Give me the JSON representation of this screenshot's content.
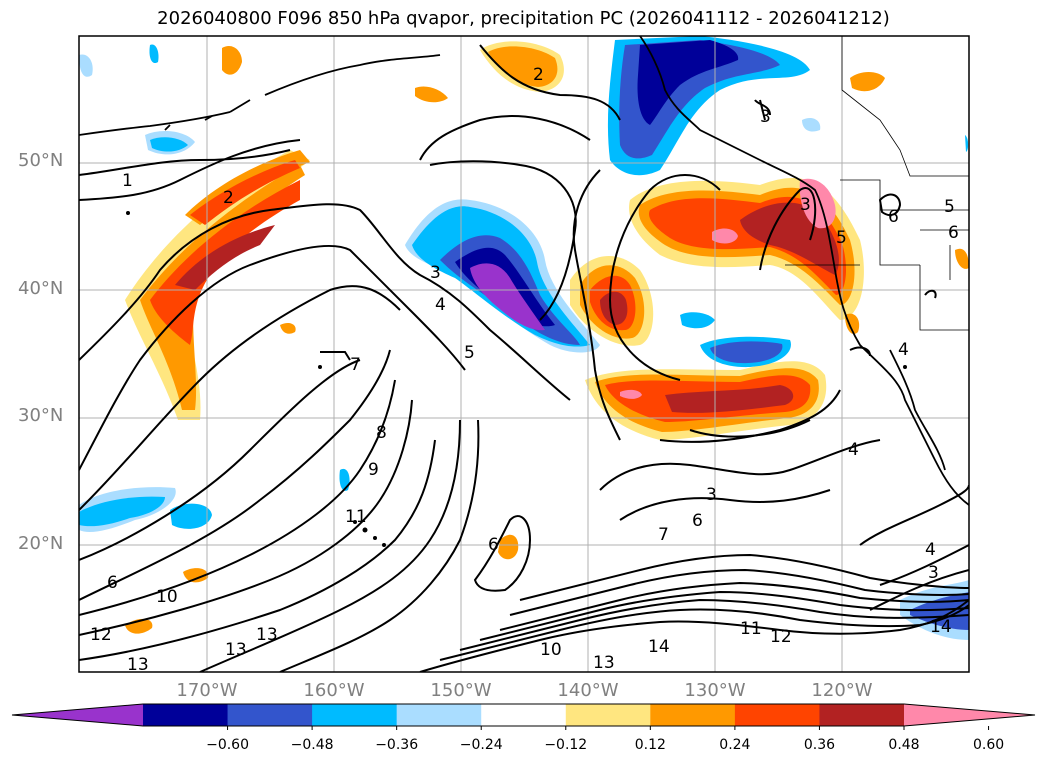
{
  "title": "2026040800 F096 850 hPa qvapor, precipitation PC (2026041112 - 2026041212)",
  "map": {
    "lat_labels": [
      "50°N",
      "40°N",
      "30°N",
      "20°N"
    ],
    "lon_labels": [
      "170°W",
      "160°W",
      "150°W",
      "140°W",
      "130°W",
      "120°W"
    ],
    "contour_labels": [
      "1",
      "2",
      "2",
      "3",
      "3",
      "4",
      "5",
      "6",
      "7",
      "8",
      "9",
      "10",
      "11",
      "12",
      "13",
      "13",
      "13",
      "14",
      "6",
      "6",
      "4",
      "4",
      "3",
      "3",
      "5",
      "6",
      "5",
      "6",
      "7",
      "10",
      "11",
      "12",
      "13",
      "14",
      "4",
      "3"
    ],
    "grid": true
  },
  "colorbar": {
    "ticks": [
      "−0.60",
      "−0.48",
      "−0.36",
      "−0.24",
      "−0.12",
      "0.12",
      "0.24",
      "0.36",
      "0.48",
      "0.60"
    ],
    "colors": [
      "#9933cc",
      "#000099",
      "#3355cc",
      "#00bbff",
      "#aaddff",
      "#ffffff",
      "#ffe680",
      "#ff9900",
      "#ff4400",
      "#b22222",
      "#ff88aa"
    ],
    "extend": "both"
  }
}
